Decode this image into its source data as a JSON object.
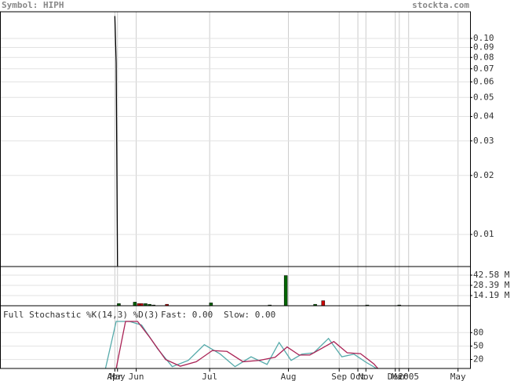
{
  "header": {
    "symbol": "Symbol: HIPH",
    "site": "stockta.com"
  },
  "chart_data": [
    {
      "type": "line",
      "log_scale": true,
      "grid": true,
      "xlim": [
        0,
        352
      ],
      "ylim": [
        0.00686,
        0.1368
      ],
      "yticks": [
        {
          "value": 0.1,
          "label": "0.10"
        },
        0.09,
        0.08,
        0.07,
        0.06,
        0.05,
        0.04,
        0.03,
        0.02,
        0.01
      ],
      "series": [
        {
          "color": "#000000",
          "x": [
            86,
            87,
            88
          ],
          "values": [
            0.13,
            0.075,
            0.0069
          ]
        }
      ]
    },
    {
      "type": "bar",
      "grid": true,
      "xlim": [
        0,
        352
      ],
      "ylim": [
        0,
        54.6
      ],
      "yticks": [
        {
          "value": 42.58,
          "label": "42.58 M"
        },
        {
          "value": 28.39,
          "label": "28.39 M"
        },
        {
          "value": 14.19,
          "label": "14.19 M"
        }
      ],
      "x": [
        89,
        101,
        104,
        106,
        109,
        112,
        115,
        125,
        158,
        202,
        214,
        236,
        242,
        275,
        299
      ],
      "values": [
        3,
        5,
        3,
        3,
        3,
        2,
        1,
        2,
        4,
        1,
        42,
        2,
        7,
        1,
        1
      ],
      "colors": [
        "#006600",
        "#006600",
        "#cc0000",
        "#cc0000",
        "#006600",
        "#006600",
        "#006600",
        "#cc0000",
        "#006600",
        "#006600",
        "#006600",
        "#006600",
        "#cc0000",
        "#006600",
        "#006600"
      ]
    },
    {
      "type": "line",
      "title": "Full Stochastic %K(14,3) %D(3)",
      "grid": true,
      "xlim": [
        0,
        352
      ],
      "ylim": [
        0,
        140
      ],
      "yticks": [
        80,
        50,
        20
      ],
      "xticks": [
        {
          "value": 86,
          "label": "Apr"
        },
        {
          "value": 88,
          "label": "May"
        },
        {
          "value": 102,
          "label": "Jun"
        },
        {
          "value": 157,
          "label": "Jul"
        },
        {
          "value": 216,
          "label": "Aug"
        },
        {
          "value": 254,
          "label": "Sep"
        },
        {
          "value": 268,
          "label": "Oct"
        },
        {
          "value": 274,
          "label": "Nov"
        },
        {
          "value": 296,
          "label": "Dec"
        },
        {
          "value": 299,
          "label": "Mar"
        },
        {
          "value": 306,
          "label": "2005"
        },
        {
          "value": 343,
          "label": "May"
        }
      ],
      "series": [
        {
          "name": "Fast: 0.00",
          "color": "#55aaaa",
          "x": [
            79,
            87,
            97,
            106,
            118,
            129,
            141,
            153,
            165,
            176,
            188,
            200,
            209,
            218,
            226,
            235,
            246,
            256,
            265,
            274,
            282
          ],
          "values": [
            0,
            105,
            105,
            97,
            44,
            4,
            18,
            53,
            32,
            4,
            26,
            9,
            58,
            18,
            32,
            35,
            67,
            26,
            32,
            14,
            0
          ]
        },
        {
          "name": "Slow: 0.00",
          "color": "#aa2255",
          "x": [
            87,
            94,
            103,
            112,
            124,
            135,
            147,
            159,
            170,
            182,
            194,
            206,
            215,
            224,
            232,
            241,
            250,
            260,
            270,
            280,
            283
          ],
          "values": [
            0,
            105,
            105,
            70,
            20,
            5,
            15,
            40,
            38,
            15,
            18,
            25,
            48,
            30,
            30,
            45,
            60,
            35,
            33,
            10,
            0
          ]
        }
      ]
    }
  ]
}
